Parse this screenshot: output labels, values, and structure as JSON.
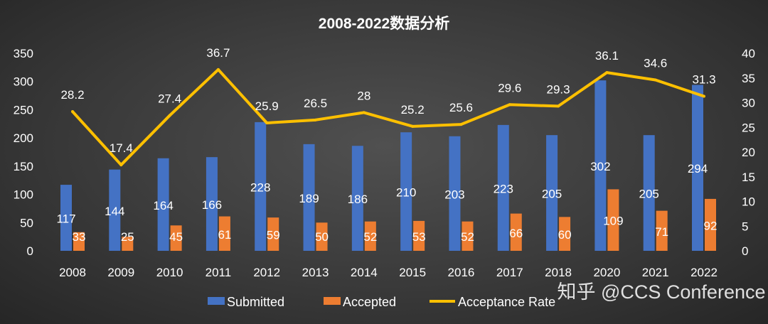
{
  "chart_data": {
    "type": "bar+line",
    "title": "2008-2022数据分析",
    "categories": [
      "2008",
      "2009",
      "2010",
      "2011",
      "2012",
      "2013",
      "2014",
      "2015",
      "2016",
      "2017",
      "2018",
      "2020",
      "2021",
      "2022"
    ],
    "series": [
      {
        "name": "Submitted",
        "type": "bar",
        "axis": "left",
        "color": "#4472C4",
        "values": [
          117,
          144,
          164,
          166,
          228,
          189,
          186,
          210,
          203,
          223,
          205,
          302,
          205,
          294
        ]
      },
      {
        "name": "Accepted",
        "type": "bar",
        "axis": "left",
        "color": "#ED7D31",
        "values": [
          33,
          25,
          45,
          61,
          59,
          50,
          52,
          53,
          52,
          66,
          60,
          109,
          71,
          92
        ]
      },
      {
        "name": "Acceptance Rate",
        "type": "line",
        "axis": "right",
        "color": "#FFC000",
        "values": [
          28.2,
          17.4,
          27.4,
          36.7,
          25.9,
          26.5,
          28,
          25.2,
          25.6,
          29.6,
          29.3,
          36.1,
          34.6,
          31.3
        ]
      }
    ],
    "ylim_left": [
      0,
      350
    ],
    "yticks_left": [
      0,
      50,
      100,
      150,
      200,
      250,
      300,
      350
    ],
    "ylim_right": [
      0,
      40
    ],
    "yticks_right": [
      0,
      5,
      10,
      15,
      20,
      25,
      30,
      35,
      40
    ],
    "grid": false,
    "legend": "bottom",
    "data_labels": true
  },
  "watermark": "知乎 @CCS Conference"
}
